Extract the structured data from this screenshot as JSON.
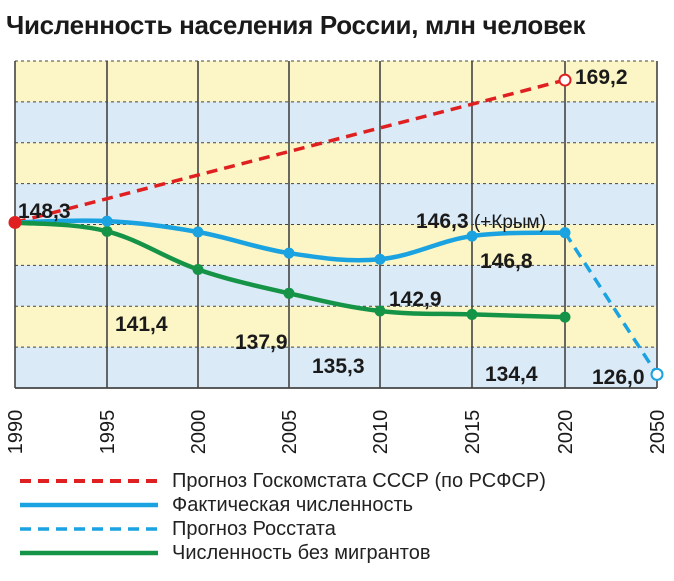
{
  "title": "Численность населения России, млн человек",
  "chart_data": {
    "type": "line",
    "title": "Численность населения России, млн человек",
    "categories": [
      "1990",
      "1995",
      "2000",
      "2005",
      "2010",
      "2015",
      "2020",
      "2050"
    ],
    "ylim": [
      124,
      172
    ],
    "grid": true,
    "legend_placement": "bottom",
    "series": [
      {
        "name": "Прогноз Госкомстата СССР (по РСФСР)",
        "color": "#e02020",
        "style": "dashed",
        "points": [
          {
            "x": "1990",
            "y": 148.3
          },
          {
            "x": "2020",
            "y": 169.2
          }
        ]
      },
      {
        "name": "Фактическая численность",
        "color": "#1aa3e0",
        "style": "solid",
        "points": [
          {
            "x": "1990",
            "y": 148.3
          },
          {
            "x": "1995",
            "y": 148.5
          },
          {
            "x": "2000",
            "y": 146.9
          },
          {
            "x": "2005",
            "y": 143.8
          },
          {
            "x": "2010",
            "y": 142.9
          },
          {
            "x": "2015",
            "y": 146.3
          },
          {
            "x": "2020",
            "y": 146.8
          }
        ]
      },
      {
        "name": "Прогноз Росстата",
        "color": "#1aa3e0",
        "style": "dashed",
        "points": [
          {
            "x": "2020",
            "y": 146.8
          },
          {
            "x": "2050",
            "y": 126.0
          }
        ]
      },
      {
        "name": "Численность без мигрантов",
        "color": "#159447",
        "style": "solid",
        "points": [
          {
            "x": "1990",
            "y": 148.3
          },
          {
            "x": "1995",
            "y": 147.0
          },
          {
            "x": "2000",
            "y": 141.4
          },
          {
            "x": "2005",
            "y": 137.9
          },
          {
            "x": "2010",
            "y": 135.3
          },
          {
            "x": "2015",
            "y": 134.8
          },
          {
            "x": "2020",
            "y": 134.4
          }
        ]
      }
    ],
    "data_labels": [
      {
        "text": "169,2",
        "x": "2020",
        "y": 169.2
      },
      {
        "text": "148,3",
        "x": "1990",
        "y": 148.3
      },
      {
        "text": "146,3 (+Крым)",
        "x": "2015",
        "y": 146.3
      },
      {
        "text": "146,8",
        "x": "2020",
        "y": 146.8
      },
      {
        "text": "142,9",
        "x": "2010",
        "y": 142.9
      },
      {
        "text": "141,4",
        "x": "2000",
        "y": 141.4
      },
      {
        "text": "137,9",
        "x": "2005",
        "y": 137.9
      },
      {
        "text": "135,3",
        "x": "2010",
        "y": 135.3
      },
      {
        "text": "134,4",
        "x": "2020",
        "y": 134.4
      },
      {
        "text": "126,0",
        "x": "2050",
        "y": 126.0
      }
    ]
  },
  "legend": [
    {
      "label": "Прогноз Госкомстата СССР (по РСФСР)",
      "color": "#e02020",
      "style": "dashed"
    },
    {
      "label": "Фактическая численность",
      "color": "#1aa3e0",
      "style": "solid"
    },
    {
      "label": "Прогноз Росстата",
      "color": "#1aa3e0",
      "style": "dashed"
    },
    {
      "label": "Численность без мигрантов",
      "color": "#159447",
      "style": "solid"
    }
  ],
  "colors": {
    "band_yellow": "#fcf5c6",
    "band_blue": "#daeaf7",
    "grid": "#444444",
    "text": "#1a1a1a"
  }
}
